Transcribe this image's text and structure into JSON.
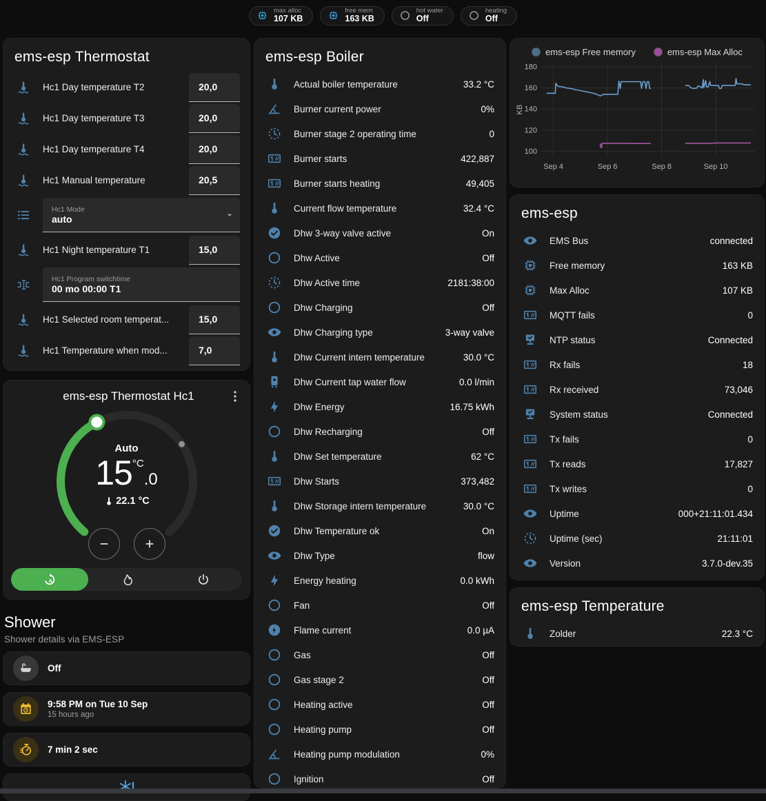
{
  "header_badges": [
    {
      "label": "max alloc",
      "value": "107 KB",
      "icon": "chip-icon",
      "color": "#37a1dd"
    },
    {
      "label": "free mem",
      "value": "163 KB",
      "icon": "chip-icon",
      "color": "#37a1dd"
    },
    {
      "label": "hot water",
      "value": "Off",
      "icon": "circle-outline-icon",
      "color": "#9e9e9e"
    },
    {
      "label": "heating",
      "value": "Off",
      "icon": "circle-outline-icon",
      "color": "#9e9e9e"
    }
  ],
  "thermostat_panel": {
    "title": "ems-esp Thermostat",
    "rows": [
      {
        "type": "number",
        "icon": "thermometer-water-icon",
        "label": "Hc1 Day temperature T2",
        "value": "20,0"
      },
      {
        "type": "number",
        "icon": "thermometer-water-icon",
        "label": "Hc1 Day temperature T3",
        "value": "20,0"
      },
      {
        "type": "number",
        "icon": "thermometer-water-icon",
        "label": "Hc1 Day temperature T4",
        "value": "20,0"
      },
      {
        "type": "number",
        "icon": "thermometer-water-icon",
        "label": "Hc1 Manual temperature",
        "value": "20,5"
      },
      {
        "type": "select",
        "icon": "format-list-icon",
        "label": "Hc1 Mode",
        "value": "auto"
      },
      {
        "type": "number",
        "icon": "thermometer-water-icon",
        "label": "Hc1 Night temperature T1",
        "value": "15,0"
      },
      {
        "type": "text",
        "icon": "form-textbox-icon",
        "label": "Hc1 Program switchtime",
        "value": "00 mo 00:00 T1"
      },
      {
        "type": "number",
        "icon": "thermometer-water-icon",
        "label": "Hc1 Selected room temperat...",
        "value": "15,0"
      },
      {
        "type": "number",
        "icon": "thermometer-water-icon",
        "label": "Hc1 Temperature when mod...",
        "value": "7,0"
      }
    ]
  },
  "dial_card": {
    "title": "ems-esp Thermostat Hc1",
    "mode_label": "Auto",
    "target_int": "15",
    "target_frac": ".0",
    "unit": "°C",
    "current_temp": "22.1 °C",
    "accent": "#4caf50",
    "modes": [
      {
        "icon": "auto-mode-icon",
        "active": true
      },
      {
        "icon": "fire-icon",
        "active": false
      },
      {
        "icon": "power-icon",
        "active": false
      }
    ]
  },
  "shower_section": {
    "title": "Shower",
    "subtitle": "Shower details via EMS-ESP",
    "cards": [
      {
        "icon": "bathtub-icon",
        "tone": "gray",
        "primary": "Off",
        "secondary": ""
      },
      {
        "icon": "calendar-clock-icon",
        "tone": "amber",
        "primary": "9:58 PM on Tue 10 Sep",
        "secondary": "15 hours ago"
      },
      {
        "icon": "timer-icon",
        "tone": "amber",
        "primary": "7 min 2 sec",
        "secondary": ""
      },
      {
        "icon": "snowflake-alert-icon",
        "tone": "centered",
        "primary": "",
        "secondary": ""
      }
    ]
  },
  "boiler_panel": {
    "title": "ems-esp Boiler",
    "rows": [
      {
        "icon": "thermometer-icon",
        "label": "Actual boiler temperature",
        "value": "33.2 °C"
      },
      {
        "icon": "angle-acute-icon",
        "label": "Burner current power",
        "value": "0%"
      },
      {
        "icon": "progress-clock-icon",
        "label": "Burner stage 2 operating time",
        "value": "0"
      },
      {
        "icon": "counter-icon",
        "label": "Burner starts",
        "value": "422,887"
      },
      {
        "icon": "counter-icon",
        "label": "Burner starts heating",
        "value": "49,405"
      },
      {
        "icon": "thermometer-icon",
        "label": "Current flow temperature",
        "value": "32.4 °C"
      },
      {
        "icon": "check-circle-icon",
        "label": "Dhw 3-way valve active",
        "value": "On"
      },
      {
        "icon": "circle-outline-icon",
        "label": "Dhw Active",
        "value": "Off"
      },
      {
        "icon": "progress-clock-icon",
        "label": "Dhw Active time",
        "value": "2181:38:00"
      },
      {
        "icon": "circle-outline-icon",
        "label": "Dhw Charging",
        "value": "Off"
      },
      {
        "icon": "eye-icon",
        "label": "Dhw Charging type",
        "value": "3-way valve"
      },
      {
        "icon": "thermometer-icon",
        "label": "Dhw Current intern temperature",
        "value": "30.0 °C"
      },
      {
        "icon": "water-boiler-icon",
        "label": "Dhw Current tap water flow",
        "value": "0.0 l/min"
      },
      {
        "icon": "lightning-bolt-icon",
        "label": "Dhw Energy",
        "value": "16.75 kWh"
      },
      {
        "icon": "circle-outline-icon",
        "label": "Dhw Recharging",
        "value": "Off"
      },
      {
        "icon": "thermometer-icon",
        "label": "Dhw Set temperature",
        "value": "62 °C"
      },
      {
        "icon": "counter-icon",
        "label": "Dhw Starts",
        "value": "373,482"
      },
      {
        "icon": "thermometer-icon",
        "label": "Dhw Storage intern temperature",
        "value": "30.0 °C"
      },
      {
        "icon": "check-circle-icon",
        "label": "Dhw Temperature ok",
        "value": "On"
      },
      {
        "icon": "eye-icon",
        "label": "Dhw Type",
        "value": "flow"
      },
      {
        "icon": "lightning-bolt-icon",
        "label": "Energy heating",
        "value": "0.0 kWh"
      },
      {
        "icon": "circle-outline-icon",
        "label": "Fan",
        "value": "Off"
      },
      {
        "icon": "flash-circle-icon",
        "label": "Flame current",
        "value": "0.0 µA"
      },
      {
        "icon": "circle-outline-icon",
        "label": "Gas",
        "value": "Off"
      },
      {
        "icon": "circle-outline-icon",
        "label": "Gas stage 2",
        "value": "Off"
      },
      {
        "icon": "circle-outline-icon",
        "label": "Heating active",
        "value": "Off"
      },
      {
        "icon": "circle-outline-icon",
        "label": "Heating pump",
        "value": "Off"
      },
      {
        "icon": "angle-acute-icon",
        "label": "Heating pump modulation",
        "value": "0%"
      },
      {
        "icon": "circle-outline-icon",
        "label": "Ignition",
        "value": "Off"
      }
    ]
  },
  "status_panel": {
    "title": "ems-esp",
    "rows": [
      {
        "icon": "eye-icon",
        "label": "EMS Bus",
        "value": "connected"
      },
      {
        "icon": "chip-icon",
        "label": "Free memory",
        "value": "163 KB"
      },
      {
        "icon": "chip-icon",
        "label": "Max Alloc",
        "value": "107 KB"
      },
      {
        "icon": "counter-icon",
        "label": "MQTT fails",
        "value": "0"
      },
      {
        "icon": "lan-check-icon",
        "label": "NTP status",
        "value": "Connected"
      },
      {
        "icon": "counter-icon",
        "label": "Rx fails",
        "value": "18"
      },
      {
        "icon": "counter-icon",
        "label": "Rx received",
        "value": "73,046"
      },
      {
        "icon": "lan-check-icon",
        "label": "System status",
        "value": "Connected"
      },
      {
        "icon": "counter-icon",
        "label": "Tx fails",
        "value": "0"
      },
      {
        "icon": "counter-icon",
        "label": "Tx reads",
        "value": "17,827"
      },
      {
        "icon": "counter-icon",
        "label": "Tx writes",
        "value": "0"
      },
      {
        "icon": "eye-icon",
        "label": "Uptime",
        "value": "000+21:11:01.434"
      },
      {
        "icon": "progress-clock-icon",
        "label": "Uptime (sec)",
        "value": "21:11:01"
      },
      {
        "icon": "eye-icon",
        "label": "Version",
        "value": "3.7.0-dev.35"
      }
    ]
  },
  "temperature_panel": {
    "title": "ems-esp Temperature",
    "rows": [
      {
        "icon": "thermometer-icon",
        "label": "Zolder",
        "value": "22.3 °C"
      }
    ]
  },
  "chart_data": {
    "type": "line",
    "ylabel": "KB",
    "ylim": [
      95,
      184
    ],
    "yticks": [
      100,
      120,
      140,
      160,
      180
    ],
    "xlim": [
      3.55,
      11.45
    ],
    "xticks": [
      {
        "x": 4,
        "label": "Sep 4"
      },
      {
        "x": 6,
        "label": "Sep 6"
      },
      {
        "x": 8,
        "label": "Sep 8"
      },
      {
        "x": 10,
        "label": "Sep 10"
      }
    ],
    "grid": true,
    "legend_position": "top",
    "series": [
      {
        "name": "ems-esp Free memory",
        "color": "#6d9fce",
        "legend_color": "#48708f",
        "segments": [
          [
            [
              3.75,
              155
            ],
            [
              4.07,
              155
            ],
            [
              4.09,
              164.5
            ],
            [
              4.15,
              162
            ],
            [
              4.2,
              161.5
            ],
            [
              4.35,
              161
            ],
            [
              4.5,
              160
            ],
            [
              4.65,
              159.5
            ],
            [
              4.8,
              158.5
            ],
            [
              5.0,
              157.5
            ],
            [
              5.2,
              156.5
            ],
            [
              5.4,
              155.5
            ],
            [
              5.55,
              154.5
            ],
            [
              5.65,
              153.5
            ],
            [
              5.72,
              152.5
            ],
            [
              5.78,
              153
            ],
            [
              5.85,
              154
            ],
            [
              6.1,
              154
            ],
            [
              6.38,
              154
            ],
            [
              6.42,
              166.5
            ],
            [
              6.47,
              159.5
            ],
            [
              6.5,
              166
            ],
            [
              6.75,
              166
            ],
            [
              7.0,
              166
            ],
            [
              7.22,
              166
            ],
            [
              7.26,
              159.5
            ],
            [
              7.3,
              166
            ],
            [
              7.38,
              166
            ],
            [
              7.42,
              159.5
            ],
            [
              7.47,
              166
            ],
            [
              7.52,
              166
            ],
            [
              7.56,
              159.5
            ],
            [
              7.6,
              159.5
            ]
          ],
          [
            [
              8.87,
              162.5
            ],
            [
              9.0,
              162.5
            ],
            [
              9.05,
              161
            ],
            [
              9.1,
              160
            ],
            [
              9.2,
              159.5
            ],
            [
              9.3,
              160
            ],
            [
              9.35,
              162
            ],
            [
              9.45,
              161
            ],
            [
              9.5,
              160
            ],
            [
              9.54,
              168
            ],
            [
              9.56,
              160.5
            ],
            [
              9.63,
              167
            ],
            [
              9.66,
              161
            ],
            [
              9.72,
              161
            ],
            [
              9.78,
              166
            ],
            [
              9.81,
              162.5
            ],
            [
              9.95,
              162.5
            ],
            [
              10.1,
              162.5
            ],
            [
              10.14,
              159.5
            ],
            [
              10.2,
              159.5
            ],
            [
              10.24,
              162.5
            ],
            [
              10.5,
              162.5
            ],
            [
              10.72,
              162.5
            ],
            [
              10.75,
              169
            ],
            [
              10.78,
              164
            ],
            [
              10.95,
              164
            ],
            [
              11.0,
              163.5
            ],
            [
              11.1,
              163
            ],
            [
              11.3,
              163
            ]
          ]
        ]
      },
      {
        "name": "ems-esp Max Alloc",
        "color": "#a357a3",
        "legend_color": "#9c4e9c",
        "segments": [
          [
            [
              5.73,
              107.5
            ],
            [
              5.75,
              103.5
            ],
            [
              5.78,
              103.5
            ],
            [
              5.8,
              107.5
            ],
            [
              6.5,
              107.5
            ],
            [
              7.2,
              107.3
            ],
            [
              7.6,
              107.3
            ]
          ],
          [
            [
              8.87,
              107.5
            ],
            [
              9.5,
              107.5
            ],
            [
              9.9,
              107.5
            ],
            [
              9.95,
              107.8
            ],
            [
              10.5,
              107.8
            ],
            [
              11.3,
              107.8
            ]
          ]
        ]
      }
    ]
  }
}
